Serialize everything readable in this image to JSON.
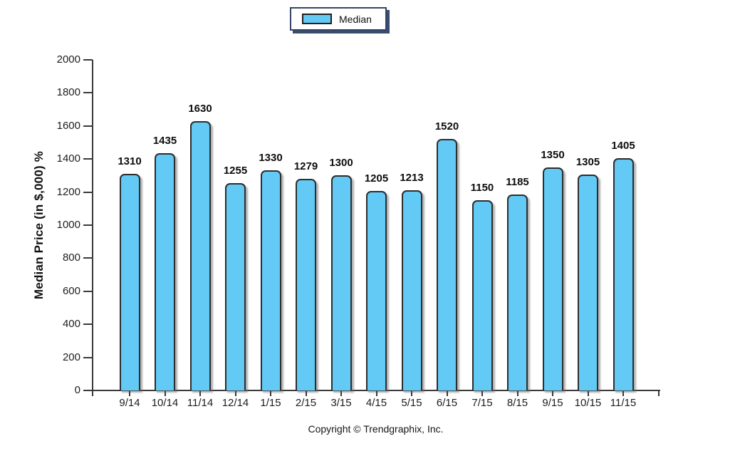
{
  "legend": {
    "label": "Median"
  },
  "footer": {
    "copyright": "Copyright © Trendgraphix, Inc."
  },
  "colors": {
    "bar_fill": "#63C9F5",
    "bar_border": "#2D2D2D",
    "legend_border": "#35446B",
    "legend_shadow": "#3A4C6E",
    "axis": "#3A3A3A",
    "text": "#1A1A1A"
  },
  "chart_data": {
    "type": "bar",
    "title": "",
    "xlabel": "",
    "ylabel": "Median Price (in $,000) %",
    "categories": [
      "9/14",
      "10/14",
      "11/14",
      "12/14",
      "1/15",
      "2/15",
      "3/15",
      "4/15",
      "5/15",
      "6/15",
      "7/15",
      "8/15",
      "9/15",
      "10/15",
      "11/15"
    ],
    "series": [
      {
        "name": "Median",
        "values": [
          1310,
          1435,
          1630,
          1255,
          1330,
          1279,
          1300,
          1205,
          1213,
          1520,
          1150,
          1185,
          1350,
          1305,
          1405
        ]
      }
    ],
    "ylim": [
      0,
      2000
    ],
    "ytick_step": 200,
    "yticks": [
      0,
      200,
      400,
      600,
      800,
      1000,
      1200,
      1400,
      1600,
      1800,
      2000
    ],
    "grid": false,
    "bar_value_labels": true,
    "legend_position": "top-center"
  }
}
